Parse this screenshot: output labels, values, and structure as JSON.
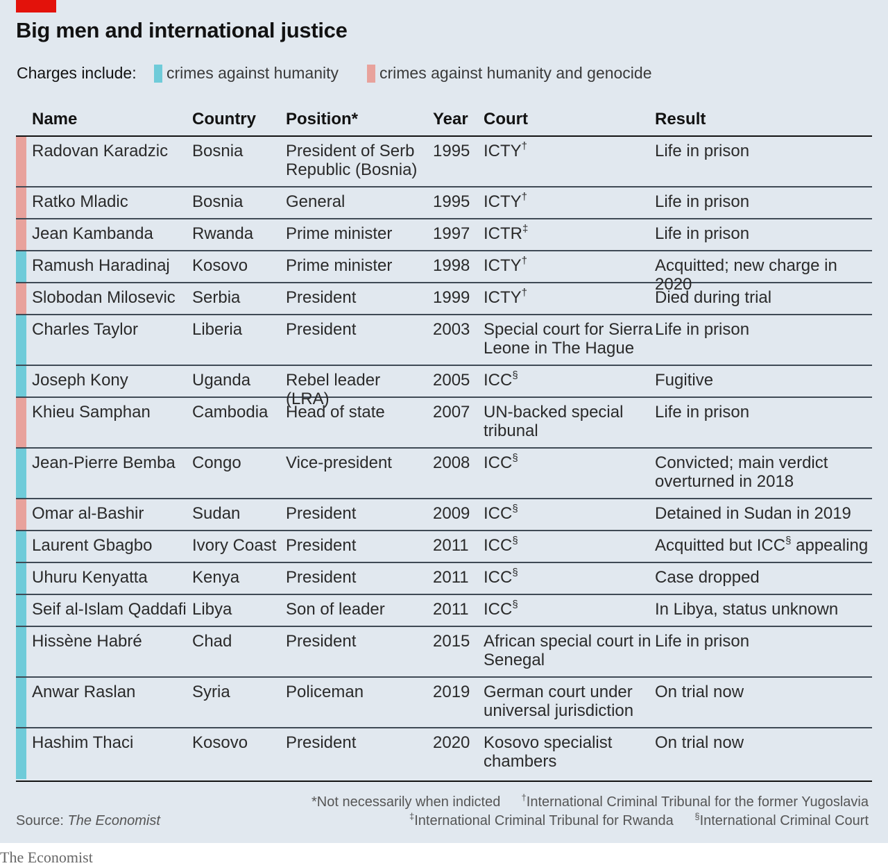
{
  "title": "Big men and international justice",
  "legend": {
    "label": "Charges include:",
    "items": [
      {
        "label": "crimes against humanity",
        "color": "#6fcbd9"
      },
      {
        "label": "crimes against humanity and genocide",
        "color": "#e8a29c"
      }
    ]
  },
  "columns": [
    "Name",
    "Country",
    "Position*",
    "Year",
    "Court",
    "Result"
  ],
  "chart_data": {
    "type": "table",
    "title": "Big men and international justice",
    "columns": [
      "Name",
      "Country",
      "Position*",
      "Year",
      "Court",
      "Result"
    ],
    "categories": {
      "h": "crimes against humanity",
      "g": "crimes against humanity and genocide"
    },
    "rows": [
      {
        "name": "Radovan Karadzic",
        "country": "Bosnia",
        "position": "President of Serb Republic (Bosnia)",
        "year": "1995",
        "court": "ICTY",
        "court_mark": "†",
        "result": "Life in prison",
        "result_mark": "",
        "result_tail": "",
        "charge": "g",
        "lines": 2
      },
      {
        "name": "Ratko Mladic",
        "country": "Bosnia",
        "position": "General",
        "year": "1995",
        "court": "ICTY",
        "court_mark": "†",
        "result": "Life in prison",
        "result_mark": "",
        "result_tail": "",
        "charge": "g",
        "lines": 1
      },
      {
        "name": "Jean Kambanda",
        "country": "Rwanda",
        "position": "Prime minister",
        "year": "1997",
        "court": "ICTR",
        "court_mark": "‡",
        "result": "Life in prison",
        "result_mark": "",
        "result_tail": "",
        "charge": "g",
        "lines": 1
      },
      {
        "name": "Ramush Haradinaj",
        "country": "Kosovo",
        "position": "Prime minister",
        "year": "1998",
        "court": "ICTY",
        "court_mark": "†",
        "result": "Acquitted; new charge in 2020",
        "result_mark": "",
        "result_tail": "",
        "charge": "h",
        "lines": 1
      },
      {
        "name": "Slobodan Milosevic",
        "country": "Serbia",
        "position": "President",
        "year": "1999",
        "court": "ICTY",
        "court_mark": "†",
        "result": "Died during trial",
        "result_mark": "",
        "result_tail": "",
        "charge": "g",
        "lines": 1
      },
      {
        "name": "Charles Taylor",
        "country": "Liberia",
        "position": "President",
        "year": "2003",
        "court": "Special court for Sierra Leone in The Hague",
        "court_mark": "",
        "result": "Life in prison",
        "result_mark": "",
        "result_tail": "",
        "charge": "h",
        "lines": 2
      },
      {
        "name": "Joseph Kony",
        "country": "Uganda",
        "position": "Rebel leader (LRA)",
        "year": "2005",
        "court": "ICC",
        "court_mark": "§",
        "result": "Fugitive",
        "result_mark": "",
        "result_tail": "",
        "charge": "h",
        "lines": 1
      },
      {
        "name": "Khieu Samphan",
        "country": "Cambodia",
        "position": "Head of state",
        "year": "2007",
        "court": "UN-backed special tribunal",
        "court_mark": "",
        "result": "Life in prison",
        "result_mark": "",
        "result_tail": "",
        "charge": "g",
        "lines": 2
      },
      {
        "name": "Jean-Pierre Bemba",
        "country": "Congo",
        "position": "Vice-president",
        "year": "2008",
        "court": "ICC",
        "court_mark": "§",
        "result": "Convicted; main verdict overturned in 2018",
        "result_mark": "",
        "result_tail": "",
        "charge": "h",
        "lines": 2
      },
      {
        "name": "Omar al-Bashir",
        "country": "Sudan",
        "position": "President",
        "year": "2009",
        "court": "ICC",
        "court_mark": "§",
        "result": "Detained in Sudan in 2019",
        "result_mark": "",
        "result_tail": "",
        "charge": "g",
        "lines": 1
      },
      {
        "name": "Laurent Gbagbo",
        "country": "Ivory Coast",
        "position": "President",
        "year": "2011",
        "court": "ICC",
        "court_mark": "§",
        "result": "Acquitted but ICC",
        "result_mark": "§",
        "result_tail": " appealing",
        "charge": "h",
        "lines": 1
      },
      {
        "name": "Uhuru Kenyatta",
        "country": "Kenya",
        "position": "President",
        "year": "2011",
        "court": "ICC",
        "court_mark": "§",
        "result": "Case dropped",
        "result_mark": "",
        "result_tail": "",
        "charge": "h",
        "lines": 1
      },
      {
        "name": "Seif al-Islam Qaddafi",
        "country": "Libya",
        "position": "Son of leader",
        "year": "2011",
        "court": "ICC",
        "court_mark": "§",
        "result": "In Libya, status unknown",
        "result_mark": "",
        "result_tail": "",
        "charge": "h",
        "lines": 1
      },
      {
        "name": "Hissène Habré",
        "country": "Chad",
        "position": "President",
        "year": "2015",
        "court": "African special court in Senegal",
        "court_mark": "",
        "result": "Life in prison",
        "result_mark": "",
        "result_tail": "",
        "charge": "h",
        "lines": 2
      },
      {
        "name": "Anwar Raslan",
        "country": "Syria",
        "position": "Policeman",
        "year": "2019",
        "court": "German court under universal jurisdiction",
        "court_mark": "",
        "result": "On trial now",
        "result_mark": "",
        "result_tail": "",
        "charge": "h",
        "lines": 2
      },
      {
        "name": "Hashim Thaci",
        "country": "Kosovo",
        "position": "President",
        "year": "2020",
        "court": "Kosovo specialist chambers",
        "court_mark": "",
        "result": "On trial now",
        "result_mark": "",
        "result_tail": "",
        "charge": "h",
        "lines": 2
      }
    ]
  },
  "footnotes": {
    "position": "*Not necessarily when indicted",
    "dagger_mark": "†",
    "dagger": "International Criminal Tribunal for the former Yugoslavia",
    "ddagger_mark": "‡",
    "ddagger": "International Criminal Tribunal for Rwanda",
    "section_mark": "§",
    "section": "International Criminal Court"
  },
  "source": {
    "label": "Source:",
    "name": "The Economist"
  },
  "brand": "The Economist"
}
